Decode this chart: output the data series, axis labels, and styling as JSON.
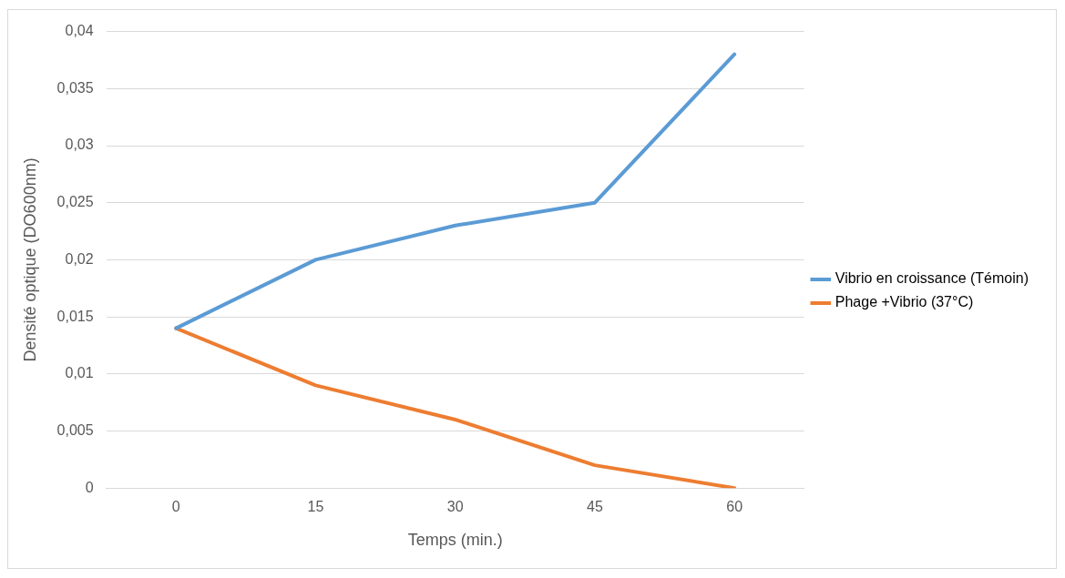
{
  "chart_data": {
    "type": "line",
    "xlabel": "Temps (min.)",
    "ylabel": "Densité optique (DO600nm)",
    "categories": [
      "0",
      "15",
      "30",
      "45",
      "60"
    ],
    "series": [
      {
        "name": "Vibrio en croissance (Témoin)",
        "color": "#5b9bd5",
        "values": [
          0.014,
          0.02,
          0.023,
          0.025,
          0.038
        ]
      },
      {
        "name": "Phage +Vibrio (37°C)",
        "color": "#ed7d31",
        "values": [
          0.014,
          0.009,
          0.006,
          0.002,
          0
        ]
      }
    ],
    "ylim": [
      0,
      0.04
    ],
    "yticks": [
      {
        "value": 0,
        "label": "0"
      },
      {
        "value": 0.005,
        "label": "0,005"
      },
      {
        "value": 0.01,
        "label": "0,01"
      },
      {
        "value": 0.015,
        "label": "0,015"
      },
      {
        "value": 0.02,
        "label": "0,02"
      },
      {
        "value": 0.025,
        "label": "0,025"
      },
      {
        "value": 0.03,
        "label": "0,03"
      },
      {
        "value": 0.035,
        "label": "0,035"
      },
      {
        "value": 0.04,
        "label": "0,04"
      }
    ],
    "grid": "y",
    "legend": "right",
    "marker": "none",
    "line_style": "solid"
  }
}
